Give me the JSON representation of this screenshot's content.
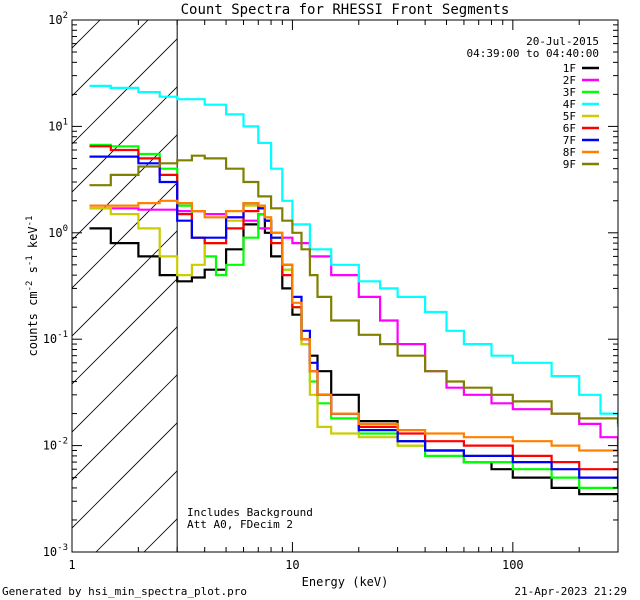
{
  "chart_data": {
    "type": "line",
    "title": "Count Spectra for RHESSI Front Segments",
    "xlabel": "Energy (keV)",
    "ylabel_parts": [
      "counts cm",
      "-2",
      " s",
      "-1",
      " keV",
      "-1"
    ],
    "x_scale": "log",
    "y_scale": "log",
    "xlim": [
      1,
      300
    ],
    "ylim": [
      0.001,
      100
    ],
    "x_tick_labels": [
      {
        "value": 1,
        "label": "1"
      },
      {
        "value": 10,
        "label": "10"
      },
      {
        "value": 100,
        "label": "100"
      }
    ],
    "y_tick_labels": [
      {
        "value": 0.001,
        "base": "10",
        "exp": "-3"
      },
      {
        "value": 0.01,
        "base": "10",
        "exp": "-2"
      },
      {
        "value": 0.1,
        "base": "10",
        "exp": "-1"
      },
      {
        "value": 1,
        "base": "10",
        "exp": "0"
      },
      {
        "value": 10,
        "base": "10",
        "exp": "1"
      },
      {
        "value": 100,
        "base": "10",
        "exp": "2"
      }
    ],
    "date_label": "20-Jul-2015",
    "time_range_label": "04:39:00 to 04:40:00",
    "hatched_region_xmax": 3,
    "annotations": [
      "Includes Background",
      "Att A0, FDecim 2"
    ],
    "series": [
      {
        "name": "1F",
        "color": "#000000",
        "points": [
          [
            1.2,
            1.1
          ],
          [
            1.5,
            0.8
          ],
          [
            2.0,
            0.6
          ],
          [
            2.5,
            0.4
          ],
          [
            3.0,
            0.35
          ],
          [
            3.5,
            0.38
          ],
          [
            4.0,
            0.45
          ],
          [
            5.0,
            0.7
          ],
          [
            6.0,
            1.2
          ],
          [
            7.0,
            1.5
          ],
          [
            7.5,
            1.0
          ],
          [
            8.0,
            0.6
          ],
          [
            9.0,
            0.3
          ],
          [
            10.0,
            0.17
          ],
          [
            11.0,
            0.1
          ],
          [
            12.0,
            0.07
          ],
          [
            13.0,
            0.05
          ],
          [
            15.0,
            0.03
          ],
          [
            20.0,
            0.017
          ],
          [
            30.0,
            0.011
          ],
          [
            40.0,
            0.009
          ],
          [
            60.0,
            0.007
          ],
          [
            80.0,
            0.006
          ],
          [
            100.0,
            0.005
          ],
          [
            150.0,
            0.004
          ],
          [
            200.0,
            0.0035
          ],
          [
            300.0,
            0.003
          ]
        ]
      },
      {
        "name": "2F",
        "color": "#ff00ff",
        "points": [
          [
            1.2,
            1.7
          ],
          [
            2.0,
            1.65
          ],
          [
            3.0,
            1.6
          ],
          [
            4.0,
            1.5
          ],
          [
            5.0,
            1.4
          ],
          [
            6.0,
            1.3
          ],
          [
            7.0,
            1.1
          ],
          [
            8.0,
            1.0
          ],
          [
            9.0,
            0.9
          ],
          [
            10.0,
            0.8
          ],
          [
            12.0,
            0.6
          ],
          [
            15.0,
            0.4
          ],
          [
            20.0,
            0.25
          ],
          [
            25.0,
            0.15
          ],
          [
            30.0,
            0.09
          ],
          [
            40.0,
            0.05
          ],
          [
            50.0,
            0.035
          ],
          [
            60.0,
            0.03
          ],
          [
            80.0,
            0.025
          ],
          [
            100.0,
            0.022
          ],
          [
            150.0,
            0.02
          ],
          [
            200.0,
            0.016
          ],
          [
            250.0,
            0.012
          ],
          [
            300.0,
            0.008
          ]
        ]
      },
      {
        "name": "3F",
        "color": "#00ff00",
        "points": [
          [
            1.2,
            6.7
          ],
          [
            1.5,
            6.5
          ],
          [
            2.0,
            5.5
          ],
          [
            2.5,
            4.0
          ],
          [
            3.0,
            1.8
          ],
          [
            3.5,
            0.9
          ],
          [
            4.0,
            0.6
          ],
          [
            4.5,
            0.4
          ],
          [
            5.0,
            0.5
          ],
          [
            6.0,
            0.9
          ],
          [
            7.0,
            1.5
          ],
          [
            7.5,
            1.3
          ],
          [
            8.0,
            0.9
          ],
          [
            9.0,
            0.45
          ],
          [
            10.0,
            0.2
          ],
          [
            11.0,
            0.09
          ],
          [
            12.0,
            0.04
          ],
          [
            13.0,
            0.025
          ],
          [
            15.0,
            0.018
          ],
          [
            20.0,
            0.013
          ],
          [
            30.0,
            0.01
          ],
          [
            40.0,
            0.008
          ],
          [
            60.0,
            0.007
          ],
          [
            100.0,
            0.006
          ],
          [
            150.0,
            0.005
          ],
          [
            200.0,
            0.004
          ],
          [
            300.0,
            0.004
          ]
        ]
      },
      {
        "name": "4F",
        "color": "#00ffff",
        "points": [
          [
            1.2,
            24.0
          ],
          [
            1.5,
            23.0
          ],
          [
            2.0,
            21.0
          ],
          [
            2.5,
            19.0
          ],
          [
            3.0,
            18.0
          ],
          [
            4.0,
            16.0
          ],
          [
            5.0,
            13.0
          ],
          [
            6.0,
            10.0
          ],
          [
            7.0,
            7.0
          ],
          [
            8.0,
            4.0
          ],
          [
            9.0,
            2.0
          ],
          [
            10.0,
            1.2
          ],
          [
            12.0,
            0.7
          ],
          [
            15.0,
            0.5
          ],
          [
            20.0,
            0.35
          ],
          [
            25.0,
            0.3
          ],
          [
            30.0,
            0.25
          ],
          [
            40.0,
            0.18
          ],
          [
            50.0,
            0.12
          ],
          [
            60.0,
            0.09
          ],
          [
            80.0,
            0.07
          ],
          [
            100.0,
            0.06
          ],
          [
            150.0,
            0.045
          ],
          [
            200.0,
            0.03
          ],
          [
            250.0,
            0.02
          ],
          [
            300.0,
            0.015
          ]
        ]
      },
      {
        "name": "5F",
        "color": "#cccc00",
        "points": [
          [
            1.2,
            1.7
          ],
          [
            1.5,
            1.5
          ],
          [
            2.0,
            1.1
          ],
          [
            2.5,
            0.6
          ],
          [
            3.0,
            0.4
          ],
          [
            3.5,
            0.5
          ],
          [
            4.0,
            0.8
          ],
          [
            5.0,
            1.3
          ],
          [
            6.0,
            1.8
          ],
          [
            7.0,
            1.8
          ],
          [
            7.5,
            1.4
          ],
          [
            8.0,
            0.9
          ],
          [
            9.0,
            0.45
          ],
          [
            10.0,
            0.2
          ],
          [
            11.0,
            0.09
          ],
          [
            12.0,
            0.03
          ],
          [
            13.0,
            0.015
          ],
          [
            15.0,
            0.013
          ],
          [
            20.0,
            0.012
          ],
          [
            30.0,
            0.01
          ],
          [
            40.0,
            0.009
          ],
          [
            60.0,
            0.008
          ],
          [
            100.0,
            0.007
          ],
          [
            150.0,
            0.006
          ],
          [
            200.0,
            0.005
          ],
          [
            300.0,
            0.005
          ]
        ]
      },
      {
        "name": "6F",
        "color": "#ff0000",
        "points": [
          [
            1.2,
            6.5
          ],
          [
            1.5,
            6.0
          ],
          [
            2.0,
            5.0
          ],
          [
            2.5,
            3.5
          ],
          [
            3.0,
            1.5
          ],
          [
            3.5,
            0.9
          ],
          [
            4.0,
            0.8
          ],
          [
            5.0,
            1.1
          ],
          [
            6.0,
            1.6
          ],
          [
            7.0,
            1.7
          ],
          [
            7.5,
            1.3
          ],
          [
            8.0,
            0.8
          ],
          [
            9.0,
            0.4
          ],
          [
            10.0,
            0.2
          ],
          [
            11.0,
            0.1
          ],
          [
            12.0,
            0.05
          ],
          [
            13.0,
            0.03
          ],
          [
            15.0,
            0.02
          ],
          [
            20.0,
            0.015
          ],
          [
            30.0,
            0.013
          ],
          [
            40.0,
            0.011
          ],
          [
            60.0,
            0.01
          ],
          [
            100.0,
            0.008
          ],
          [
            150.0,
            0.007
          ],
          [
            200.0,
            0.006
          ],
          [
            300.0,
            0.005
          ]
        ]
      },
      {
        "name": "7F",
        "color": "#0000ff",
        "points": [
          [
            1.2,
            5.2
          ],
          [
            1.5,
            5.2
          ],
          [
            2.0,
            4.5
          ],
          [
            2.5,
            3.0
          ],
          [
            3.0,
            1.3
          ],
          [
            3.5,
            0.9
          ],
          [
            4.0,
            0.9
          ],
          [
            5.0,
            1.4
          ],
          [
            6.0,
            1.9
          ],
          [
            7.0,
            1.7
          ],
          [
            7.5,
            1.3
          ],
          [
            8.0,
            0.9
          ],
          [
            9.0,
            0.5
          ],
          [
            10.0,
            0.25
          ],
          [
            11.0,
            0.12
          ],
          [
            12.0,
            0.06
          ],
          [
            13.0,
            0.03
          ],
          [
            15.0,
            0.02
          ],
          [
            20.0,
            0.014
          ],
          [
            30.0,
            0.011
          ],
          [
            40.0,
            0.009
          ],
          [
            60.0,
            0.008
          ],
          [
            100.0,
            0.007
          ],
          [
            150.0,
            0.006
          ],
          [
            200.0,
            0.005
          ],
          [
            300.0,
            0.004
          ]
        ]
      },
      {
        "name": "8F",
        "color": "#ff8000",
        "points": [
          [
            1.2,
            1.8
          ],
          [
            1.5,
            1.8
          ],
          [
            2.0,
            1.9
          ],
          [
            2.5,
            2.0
          ],
          [
            3.0,
            1.9
          ],
          [
            3.5,
            1.6
          ],
          [
            4.0,
            1.4
          ],
          [
            5.0,
            1.6
          ],
          [
            6.0,
            1.9
          ],
          [
            7.0,
            1.8
          ],
          [
            7.5,
            1.4
          ],
          [
            8.0,
            1.0
          ],
          [
            9.0,
            0.5
          ],
          [
            10.0,
            0.22
          ],
          [
            11.0,
            0.1
          ],
          [
            12.0,
            0.05
          ],
          [
            13.0,
            0.03
          ],
          [
            15.0,
            0.02
          ],
          [
            20.0,
            0.016
          ],
          [
            30.0,
            0.014
          ],
          [
            40.0,
            0.013
          ],
          [
            60.0,
            0.012
          ],
          [
            100.0,
            0.011
          ],
          [
            150.0,
            0.01
          ],
          [
            200.0,
            0.009
          ],
          [
            300.0,
            0.008
          ]
        ]
      },
      {
        "name": "9F",
        "color": "#808000",
        "points": [
          [
            1.2,
            2.8
          ],
          [
            1.5,
            3.5
          ],
          [
            2.0,
            4.2
          ],
          [
            2.5,
            4.5
          ],
          [
            3.0,
            4.8
          ],
          [
            3.5,
            5.3
          ],
          [
            4.0,
            5.0
          ],
          [
            5.0,
            4.0
          ],
          [
            6.0,
            3.0
          ],
          [
            7.0,
            2.2
          ],
          [
            8.0,
            1.7
          ],
          [
            9.0,
            1.3
          ],
          [
            10.0,
            1.0
          ],
          [
            11.0,
            0.7
          ],
          [
            12.0,
            0.4
          ],
          [
            13.0,
            0.25
          ],
          [
            15.0,
            0.15
          ],
          [
            20.0,
            0.11
          ],
          [
            25.0,
            0.09
          ],
          [
            30.0,
            0.07
          ],
          [
            40.0,
            0.05
          ],
          [
            50.0,
            0.04
          ],
          [
            60.0,
            0.035
          ],
          [
            80.0,
            0.03
          ],
          [
            100.0,
            0.026
          ],
          [
            150.0,
            0.02
          ],
          [
            200.0,
            0.018
          ],
          [
            300.0,
            0.016
          ]
        ]
      }
    ]
  },
  "footer": {
    "generated_by": "Generated by hsi_min_spectra_plot.pro",
    "timestamp": "21-Apr-2023 21:29"
  }
}
